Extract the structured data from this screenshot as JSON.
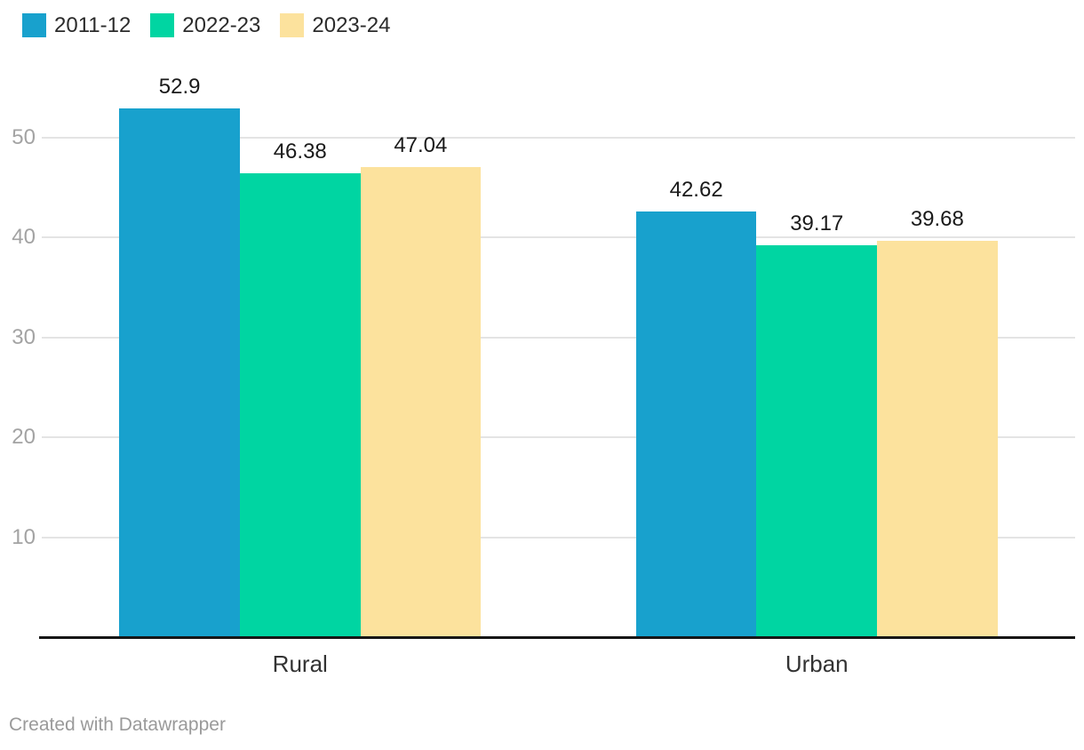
{
  "chart_data": {
    "type": "bar",
    "grouped": true,
    "title": "",
    "xlabel": "",
    "ylabel": "",
    "categories": [
      "Rural",
      "Urban"
    ],
    "series": [
      {
        "name": "2011-12",
        "color": "#18a1cd",
        "values": [
          52.9,
          42.62
        ]
      },
      {
        "name": "2022-23",
        "color": "#00d5a2",
        "values": [
          46.38,
          39.17
        ]
      },
      {
        "name": "2023-24",
        "color": "#fce29d",
        "values": [
          47.04,
          39.68
        ]
      }
    ],
    "yticks": [
      10,
      20,
      30,
      40,
      50
    ],
    "ylim": [
      0,
      55
    ],
    "grid": "horizontal",
    "legend_position": "top-left",
    "value_labels_shown": true
  },
  "colors": {
    "gridline": "#e4e4e4",
    "axis_line": "#161616",
    "tick_text": "#a3a3a3",
    "value_text": "#1a1a1a",
    "category_text": "#333333",
    "footer_text": "#9a9a9a"
  },
  "footer": {
    "credit": "Created with Datawrapper"
  }
}
